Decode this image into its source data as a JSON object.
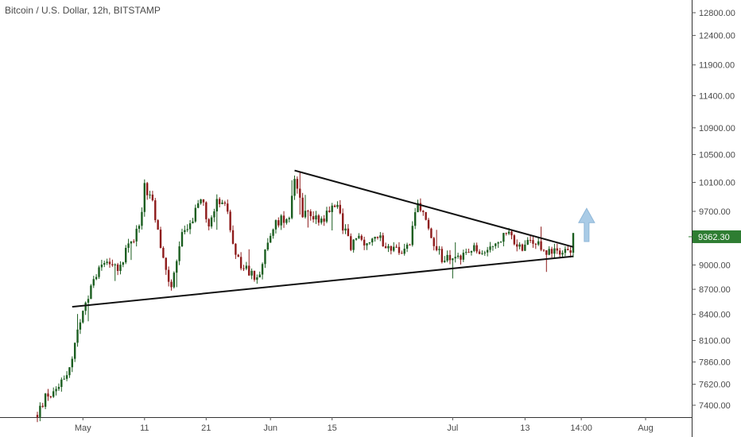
{
  "chart_data": {
    "type": "candlestick",
    "title": "Bitcoin / U.S. Dollar, 12h, BITSTAMP",
    "y_axis": {
      "position": "right",
      "ticks": [
        "12800.00",
        "12400.00",
        "11900.00",
        "11400.00",
        "10900.00",
        "10500.00",
        "10100.00",
        "9700.00",
        "9000.00",
        "8700.00",
        "8400.00",
        "8100.00",
        "7860.00",
        "7620.00",
        "7400.00"
      ],
      "scale": "log",
      "range": [
        7250,
        13100
      ]
    },
    "x_axis": {
      "ticks": [
        "May",
        "11",
        "21",
        "Jun",
        "15",
        "Jul",
        "13",
        "14:00",
        "Aug"
      ]
    },
    "last_price": {
      "value": 9362.3,
      "label": "9362.30",
      "color": "#2e7d32"
    },
    "colors": {
      "up": "#1b5e20",
      "down": "#8e1b1b",
      "trendline": "#111111",
      "arrow": "#a9cbe6"
    },
    "anchors": [
      [
        0,
        7300
      ],
      [
        3,
        7480
      ],
      [
        6,
        7550
      ],
      [
        9,
        7680
      ],
      [
        12,
        7780
      ],
      [
        15,
        8200
      ],
      [
        17,
        8400
      ],
      [
        19,
        8600
      ],
      [
        22,
        8900
      ],
      [
        26,
        9100
      ],
      [
        30,
        8900
      ],
      [
        34,
        9300
      ],
      [
        38,
        9450
      ],
      [
        40,
        10050
      ],
      [
        43,
        9800
      ],
      [
        46,
        9200
      ],
      [
        50,
        8700
      ],
      [
        54,
        9400
      ],
      [
        58,
        9600
      ],
      [
        61,
        9900
      ],
      [
        64,
        9500
      ],
      [
        67,
        9900
      ],
      [
        71,
        9700
      ],
      [
        73,
        9200
      ],
      [
        76,
        9000
      ],
      [
        79,
        8900
      ],
      [
        82,
        8850
      ],
      [
        86,
        9250
      ],
      [
        88,
        9500
      ],
      [
        91,
        9600
      ],
      [
        94,
        9650
      ],
      [
        96,
        10200
      ],
      [
        99,
        9700
      ],
      [
        102,
        9650
      ],
      [
        106,
        9600
      ],
      [
        109,
        9700
      ],
      [
        112,
        9820
      ],
      [
        114,
        9500
      ],
      [
        117,
        9250
      ],
      [
        120,
        9350
      ],
      [
        124,
        9250
      ],
      [
        127,
        9400
      ],
      [
        130,
        9250
      ],
      [
        133,
        9200
      ],
      [
        136,
        9150
      ],
      [
        139,
        9300
      ],
      [
        142,
        9780
      ],
      [
        145,
        9600
      ],
      [
        148,
        9200
      ],
      [
        151,
        9100
      ],
      [
        154,
        9050
      ],
      [
        157,
        9100
      ],
      [
        160,
        9150
      ],
      [
        163,
        9200
      ],
      [
        166,
        9100
      ],
      [
        169,
        9250
      ],
      [
        172,
        9300
      ],
      [
        175,
        9400
      ],
      [
        178,
        9300
      ],
      [
        181,
        9200
      ],
      [
        184,
        9300
      ],
      [
        187,
        9250
      ],
      [
        190,
        9150
      ],
      [
        193,
        9200
      ],
      [
        196,
        9180
      ],
      [
        199,
        9230
      ],
      [
        200,
        9410
      ]
    ],
    "trendlines": [
      {
        "name": "upper",
        "points": [
          [
            96,
            10270
          ],
          [
            200,
            9230
          ]
        ]
      },
      {
        "name": "lower",
        "points": [
          [
            13,
            8490
          ],
          [
            200,
            9110
          ]
        ]
      }
    ],
    "annotation": {
      "type": "arrow-up",
      "x": 205,
      "from": 9300,
      "to": 9740
    }
  }
}
